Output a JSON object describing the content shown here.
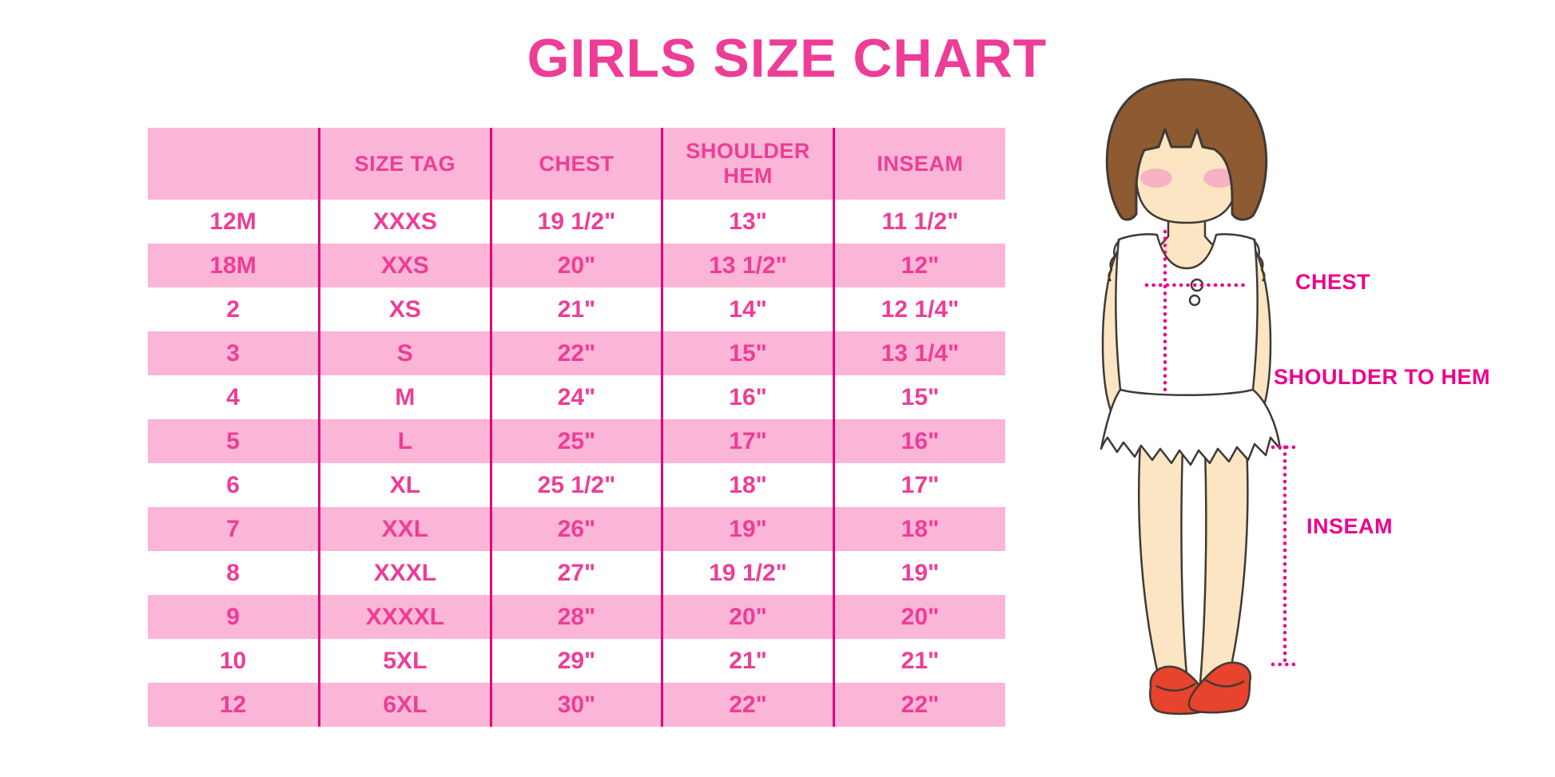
{
  "chart_data": {
    "type": "table",
    "title": "GIRLS SIZE CHART",
    "columns": [
      "",
      "SIZE TAG",
      "CHEST",
      "SHOULDER HEM",
      "INSEAM"
    ],
    "rows": [
      [
        "12M",
        "XXXS",
        "19 1/2\"",
        "13\"",
        "11 1/2\""
      ],
      [
        "18M",
        "XXS",
        "20\"",
        "13 1/2\"",
        "12\""
      ],
      [
        "2",
        "XS",
        "21\"",
        "14\"",
        "12 1/4\""
      ],
      [
        "3",
        "S",
        "22\"",
        "15\"",
        "13 1/4\""
      ],
      [
        "4",
        "M",
        "24\"",
        "16\"",
        "15\""
      ],
      [
        "5",
        "L",
        "25\"",
        "17\"",
        "16\""
      ],
      [
        "6",
        "XL",
        "25 1/2\"",
        "18\"",
        "17\""
      ],
      [
        "7",
        "XXL",
        "26\"",
        "19\"",
        "18\""
      ],
      [
        "8",
        "XXXL",
        "27\"",
        "19 1/2\"",
        "19\""
      ],
      [
        "9",
        "XXXXL",
        "28\"",
        "20\"",
        "20\""
      ],
      [
        "10",
        "5XL",
        "29\"",
        "21\"",
        "21\""
      ],
      [
        "12",
        "6XL",
        "30\"",
        "22\"",
        "22\""
      ]
    ],
    "row_stripe_pattern": "alternating white / pink, header pink",
    "legend_position": "none",
    "grid": "vertical column separators only"
  },
  "diagram": {
    "chest_label": "CHEST",
    "shoulder_to_hem_label": "SHOULDER TO HEM",
    "inseam_label": "INSEAM"
  },
  "colors": {
    "title_pink": "#EE3D96",
    "row_pink_bg": "#FAB5D7",
    "column_line": "#E0007D",
    "label_magenta": "#EC008C",
    "hair_brown": "#8E5A32",
    "skin": "#FCE5C3",
    "blush": "#F3A6C6",
    "shoe_red": "#E8432C",
    "dress_white": "#FFFFFF"
  }
}
